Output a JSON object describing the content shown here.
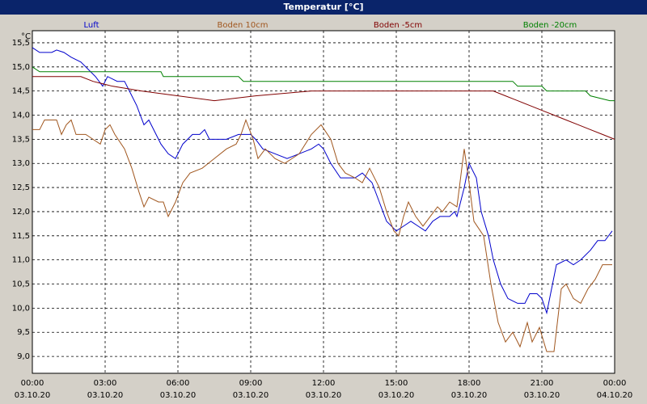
{
  "chart_data": {
    "type": "line",
    "title": "Temperatur [°C]",
    "y_unit": "°C",
    "xlim": [
      0,
      24
    ],
    "xticks": [
      {
        "value": 0,
        "label": "00:00"
      },
      {
        "value": 3,
        "label": "03:00"
      },
      {
        "value": 6,
        "label": "06:00"
      },
      {
        "value": 9,
        "label": "09:00"
      },
      {
        "value": 12,
        "label": "12:00"
      },
      {
        "value": 15,
        "label": "15:00"
      },
      {
        "value": 18,
        "label": "18:00"
      },
      {
        "value": 21,
        "label": "21:00"
      },
      {
        "value": 24,
        "label": "00:00"
      }
    ],
    "xtick_dates": [
      "03.10.20",
      "03.10.20",
      "03.10.20",
      "03.10.20",
      "03.10.20",
      "03.10.20",
      "03.10.20",
      "03.10.20",
      "04.10.20"
    ],
    "ylim": [
      8.65,
      15.75
    ],
    "yticks": [
      {
        "value": 9.0,
        "label": "9,0"
      },
      {
        "value": 9.5,
        "label": "9,5"
      },
      {
        "value": 10.0,
        "label": "10,0"
      },
      {
        "value": 10.5,
        "label": "10,5"
      },
      {
        "value": 11.0,
        "label": "11,0"
      },
      {
        "value": 11.5,
        "label": "11,5"
      },
      {
        "value": 12.0,
        "label": "12,0"
      },
      {
        "value": 12.5,
        "label": "12,5"
      },
      {
        "value": 13.0,
        "label": "13,0"
      },
      {
        "value": 13.5,
        "label": "13,5"
      },
      {
        "value": 14.0,
        "label": "14,0"
      },
      {
        "value": 14.5,
        "label": "14,5"
      },
      {
        "value": 15.0,
        "label": "15,0"
      },
      {
        "value": 15.5,
        "label": "15,5"
      }
    ],
    "grid": true,
    "series": [
      {
        "name": "Luft",
        "color": "#0000cc",
        "x": [
          0,
          0.3,
          0.6,
          0.8,
          1,
          1.3,
          1.6,
          2,
          2.4,
          2.6,
          2.9,
          3.1,
          3.5,
          3.8,
          4,
          4.3,
          4.6,
          4.8,
          5.1,
          5.3,
          5.6,
          5.9,
          6.2,
          6.6,
          6.9,
          7.1,
          7.3,
          8,
          8.5,
          9,
          9.2,
          9.5,
          10,
          10.5,
          11,
          11.5,
          11.8,
          12,
          12.3,
          12.7,
          13.3,
          13.6,
          14,
          14.3,
          14.6,
          15,
          15.3,
          15.6,
          15.9,
          16.2,
          16.5,
          16.8,
          17.2,
          17.4,
          17.5,
          17.8,
          18,
          18.3,
          18.5,
          18.8,
          19,
          19.3,
          19.6,
          20,
          20.3,
          20.5,
          20.8,
          21,
          21.2,
          21.4,
          21.6,
          22,
          22.3,
          22.6,
          23,
          23.3,
          23.6,
          23.9
        ],
        "values": [
          15.4,
          15.3,
          15.3,
          15.3,
          15.35,
          15.3,
          15.2,
          15.1,
          14.9,
          14.8,
          14.6,
          14.8,
          14.7,
          14.7,
          14.5,
          14.2,
          13.8,
          13.9,
          13.6,
          13.4,
          13.2,
          13.1,
          13.4,
          13.6,
          13.6,
          13.7,
          13.5,
          13.5,
          13.6,
          13.6,
          13.5,
          13.3,
          13.2,
          13.1,
          13.2,
          13.3,
          13.4,
          13.3,
          13.0,
          12.7,
          12.7,
          12.8,
          12.6,
          12.2,
          11.8,
          11.6,
          11.7,
          11.8,
          11.7,
          11.6,
          11.8,
          11.9,
          11.9,
          12.0,
          11.9,
          12.5,
          13.0,
          12.7,
          12.0,
          11.5,
          11.0,
          10.5,
          10.2,
          10.1,
          10.1,
          10.3,
          10.3,
          10.2,
          9.9,
          10.4,
          10.9,
          11.0,
          10.9,
          11.0,
          11.2,
          11.4,
          11.4,
          11.6
        ]
      },
      {
        "name": "Boden 10cm",
        "color": "#a0561e",
        "x": [
          0,
          0.3,
          0.5,
          1,
          1.2,
          1.4,
          1.6,
          1.8,
          2.2,
          2.5,
          2.8,
          3,
          3.2,
          3.4,
          3.8,
          4.1,
          4.4,
          4.6,
          4.8,
          5.2,
          5.4,
          5.6,
          5.9,
          6.2,
          6.5,
          7,
          7.5,
          8,
          8.4,
          8.6,
          8.8,
          9.1,
          9.3,
          9.6,
          10,
          10.4,
          10.7,
          11,
          11.5,
          11.9,
          12.3,
          12.6,
          12.9,
          13.3,
          13.6,
          13.9,
          14.3,
          14.6,
          14.9,
          15.1,
          15.3,
          15.5,
          15.8,
          16.1,
          16.4,
          16.7,
          16.9,
          17.2,
          17.5,
          17.8,
          18,
          18.2,
          18.6,
          18.9,
          19.2,
          19.5,
          19.8,
          20.1,
          20.4,
          20.6,
          20.9,
          21.2,
          21.5,
          21.8,
          22,
          22.3,
          22.6,
          22.9,
          23.2,
          23.5,
          23.9
        ],
        "values": [
          13.7,
          13.7,
          13.9,
          13.9,
          13.6,
          13.8,
          13.9,
          13.6,
          13.6,
          13.5,
          13.4,
          13.7,
          13.8,
          13.6,
          13.3,
          12.9,
          12.4,
          12.1,
          12.3,
          12.2,
          12.2,
          11.9,
          12.2,
          12.6,
          12.8,
          12.9,
          13.1,
          13.3,
          13.4,
          13.6,
          13.9,
          13.5,
          13.1,
          13.3,
          13.1,
          13.0,
          13.1,
          13.2,
          13.6,
          13.8,
          13.5,
          13.0,
          12.8,
          12.7,
          12.6,
          12.9,
          12.5,
          12.0,
          11.6,
          11.5,
          11.9,
          12.2,
          11.9,
          11.7,
          11.9,
          12.1,
          12.0,
          12.2,
          12.1,
          13.3,
          12.6,
          11.8,
          11.5,
          10.5,
          9.7,
          9.3,
          9.5,
          9.2,
          9.7,
          9.3,
          9.6,
          9.1,
          9.1,
          10.4,
          10.5,
          10.2,
          10.1,
          10.4,
          10.6,
          10.9,
          10.9
        ]
      },
      {
        "name": "Boden -5cm",
        "color": "#800000",
        "x": [
          0,
          2,
          2.5,
          3.3,
          4.5,
          6,
          7.5,
          9.2,
          11.5,
          19,
          19.5,
          20,
          20.5,
          21,
          21.5,
          22,
          22.5,
          23,
          23.5,
          24
        ],
        "values": [
          14.8,
          14.8,
          14.7,
          14.6,
          14.5,
          14.4,
          14.3,
          14.4,
          14.5,
          14.5,
          14.4,
          14.3,
          14.2,
          14.1,
          14.0,
          13.9,
          13.8,
          13.7,
          13.6,
          13.5
        ]
      },
      {
        "name": "Boden -20cm",
        "color": "#008000",
        "x": [
          0,
          0.3,
          5.3,
          5.4,
          8.5,
          8.7,
          19.8,
          20,
          21,
          21.2,
          22.8,
          23,
          23.8,
          24
        ],
        "values": [
          15.0,
          14.9,
          14.9,
          14.8,
          14.8,
          14.7,
          14.7,
          14.6,
          14.6,
          14.5,
          14.5,
          14.4,
          14.3,
          14.3
        ]
      }
    ]
  }
}
